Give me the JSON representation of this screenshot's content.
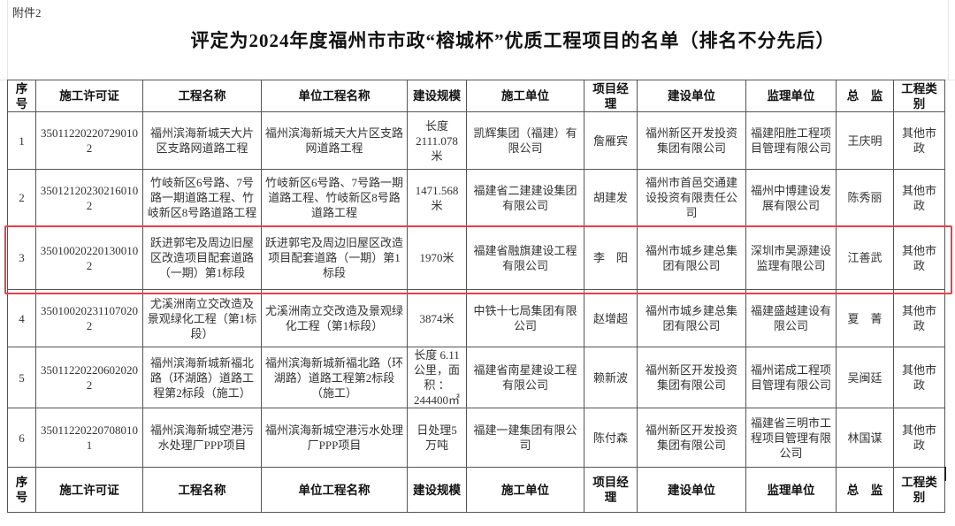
{
  "attachment_label": "附件2",
  "title": "评定为2024年度福州市市政“榕城杯”优质工程项目的名单（排名不分先后）",
  "columns": [
    "序号",
    "施工许可证",
    "工程名称",
    "单位工程名称",
    "建设规模",
    "施工单位",
    "项目经理",
    "建设单位",
    "监理单位",
    "总　监",
    "工程类别"
  ],
  "rows": [
    [
      "1",
      "350112202207290102",
      "福州滨海新城天大片区支路网道路工程",
      "福州滨海新城天大片区支路网道路工程",
      "长度2111.078米",
      "凯辉集团（福建）有限公司",
      "詹雁宾",
      "福州新区开发投资集团有限公司",
      "福建阳胜工程项目管理有限公司",
      "王庆明",
      "其他市政"
    ],
    [
      "2",
      "350121202302160102",
      "竹岐新区6号路、7号路一期道路工程、竹岐新区8号路道路工程",
      "竹岐新区6号路、7号路一期道路工程、竹岐新区8号路道路工程",
      "1471.568米",
      "福建省二建建设集团有限公司",
      "胡建发",
      "福州市首邑交通建设投资有限责任公司",
      "福州中博建设发展有限公司",
      "陈秀丽",
      "其他市政"
    ],
    [
      "3",
      "350100202201300102",
      "跃进郭宅及周边旧屋区改造项目配套道路（一期）第1标段",
      "跃进郭宅及周边旧屋区改造项目配套道路（一期）第1标段",
      "1970米",
      "福建省融旗建设工程有限公司",
      "李　阳",
      "福州市城乡建总集团有限公司",
      "深圳市昊源建设监理有限公司",
      "江善武",
      "其他市政"
    ],
    [
      "4",
      "350100202311070202",
      "尤溪洲南立交改造及景观绿化工程（第1标段）",
      "尤溪洲南立交改造及景观绿化工程（第1标段）",
      "3874米",
      "中铁十七局集团有限公司",
      "赵增超",
      "福州市城乡建总集团有限公司",
      "福建盛越建设有限公司",
      "夏　菁",
      "其他市政"
    ],
    [
      "5",
      "350112202206020202",
      "福州滨海新城新福北路（环湖路）道路工程第2标段（施工）",
      "福州滨海新城新福北路（环湖路）道路工程第2标段（施工）",
      "长度 6.11公里，面积 ：244400㎡",
      "福建省南星建设工程有限公司",
      "赖新波",
      "福州新区开发投资集团有限公司",
      "福州诺成工程项目管理有限公司",
      "吴闽廷",
      "其他市政"
    ],
    [
      "6",
      "350112202207080101",
      "福州滨海新城空港污水处理厂PPP项目",
      "福州滨海新城空港污水处理厂PPP项目",
      "日处理5万吨",
      "福建一建集团有限公司",
      "陈付森",
      "福州新区开发投资集团有限公司",
      "福建省三明市工程项目管理有限公司",
      "林国谋",
      "其他市政"
    ]
  ],
  "highlight_row": "3",
  "highlight_color": "#e8404a"
}
